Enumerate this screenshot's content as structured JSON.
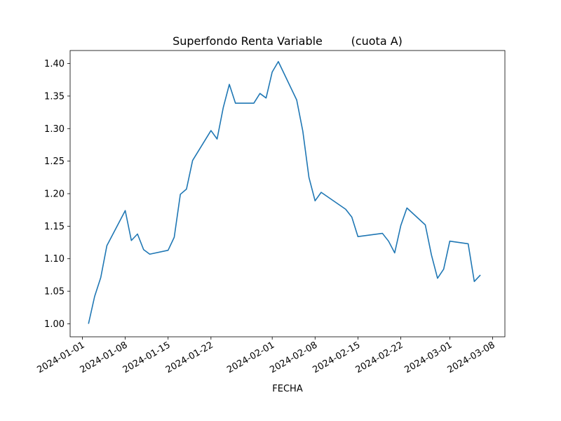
{
  "chart_data": {
    "type": "line",
    "title": "Superfondo Renta Variable        (cuota A)",
    "xlabel": "FECHA",
    "ylabel": "",
    "ylim": [
      0.98,
      1.42
    ],
    "xlim": [
      "2023-12-30",
      "2024-03-10"
    ],
    "grid": false,
    "line_color": "#1f77b4",
    "y_ticks": [
      "1.00",
      "1.05",
      "1.10",
      "1.15",
      "1.20",
      "1.25",
      "1.30",
      "1.35",
      "1.40"
    ],
    "y_tick_values": [
      1.0,
      1.05,
      1.1,
      1.15,
      1.2,
      1.25,
      1.3,
      1.35,
      1.4
    ],
    "x_ticks": [
      "2024-01-01",
      "2024-01-08",
      "2024-01-15",
      "2024-01-22",
      "2024-02-01",
      "2024-02-08",
      "2024-02-15",
      "2024-02-22",
      "2024-03-01",
      "2024-03-08"
    ],
    "series": [
      {
        "x": [
          "2024-01-02",
          "2024-01-03",
          "2024-01-04",
          "2024-01-05",
          "2024-01-08",
          "2024-01-09",
          "2024-01-10",
          "2024-01-11",
          "2024-01-12",
          "2024-01-15",
          "2024-01-16",
          "2024-01-17",
          "2024-01-18",
          "2024-01-19",
          "2024-01-22",
          "2024-01-23",
          "2024-01-24",
          "2024-01-25",
          "2024-01-26",
          "2024-01-29",
          "2024-01-30",
          "2024-01-31",
          "2024-02-01",
          "2024-02-02",
          "2024-02-05",
          "2024-02-06",
          "2024-02-07",
          "2024-02-08",
          "2024-02-09",
          "2024-02-13",
          "2024-02-14",
          "2024-02-15",
          "2024-02-19",
          "2024-02-20",
          "2024-02-21",
          "2024-02-22",
          "2024-02-23",
          "2024-02-26",
          "2024-02-27",
          "2024-02-28",
          "2024-02-29",
          "2024-03-01",
          "2024-03-04",
          "2024-03-05",
          "2024-03-06"
        ],
        "values": [
          1.0,
          1.042,
          1.071,
          1.12,
          1.174,
          1.128,
          1.138,
          1.114,
          1.107,
          1.113,
          1.133,
          1.199,
          1.207,
          1.251,
          1.297,
          1.284,
          1.332,
          1.368,
          1.339,
          1.339,
          1.354,
          1.347,
          1.387,
          1.403,
          1.344,
          1.296,
          1.225,
          1.189,
          1.202,
          1.176,
          1.164,
          1.134,
          1.139,
          1.127,
          1.109,
          1.151,
          1.178,
          1.152,
          1.106,
          1.07,
          1.084,
          1.127,
          1.123,
          1.065,
          1.075
        ]
      }
    ]
  }
}
